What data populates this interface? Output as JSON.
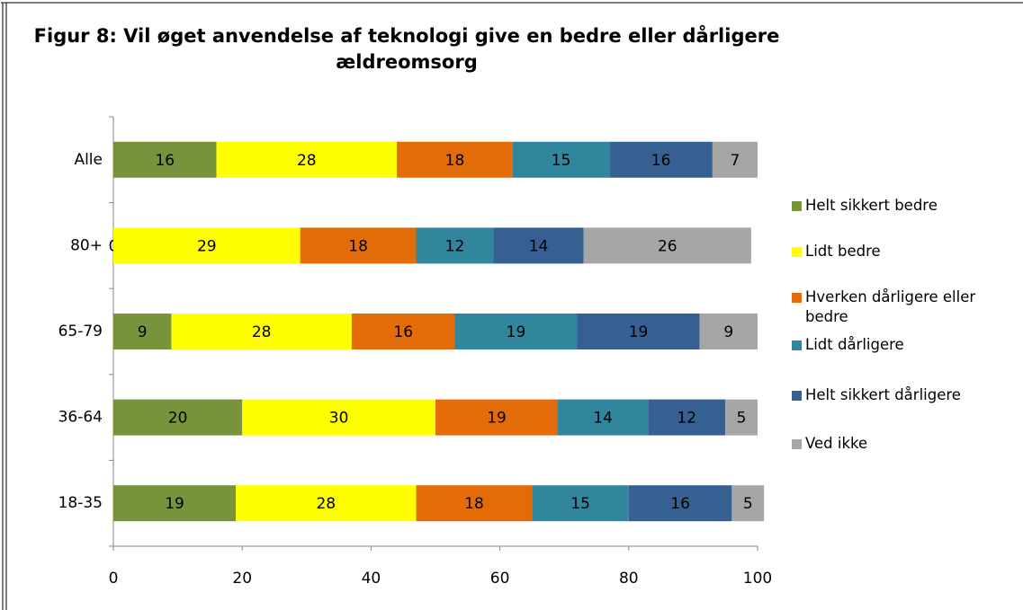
{
  "chart_data": {
    "type": "stacked-bar-horizontal",
    "title": "Figur 8: Vil øget anvendelse af teknologi give en bedre eller dårligere ældreomsorg",
    "categories": [
      "Alle",
      "80+",
      "65-79",
      "36-64",
      "18-35"
    ],
    "series": [
      {
        "name": "Helt sikkert bedre",
        "color": "#77933c",
        "values": [
          16,
          0,
          9,
          20,
          19
        ]
      },
      {
        "name": "Lidt bedre",
        "color": "#ffff00",
        "values": [
          28,
          29,
          28,
          30,
          28
        ]
      },
      {
        "name": "Hverken dårligere eller bedre",
        "color": "#e36c09",
        "values": [
          18,
          18,
          16,
          19,
          18
        ]
      },
      {
        "name": "Lidt dårligere",
        "color": "#31859c",
        "values": [
          15,
          12,
          19,
          14,
          15
        ]
      },
      {
        "name": "Helt sikkert dårligere",
        "color": "#376092",
        "values": [
          16,
          14,
          19,
          12,
          16
        ]
      },
      {
        "name": "Ved ikke",
        "color": "#a6a6a6",
        "values": [
          7,
          26,
          9,
          5,
          5
        ]
      }
    ],
    "xlim": [
      0,
      100
    ],
    "xticks": [
      0,
      20,
      40,
      60,
      80,
      100
    ],
    "legend": "right"
  }
}
